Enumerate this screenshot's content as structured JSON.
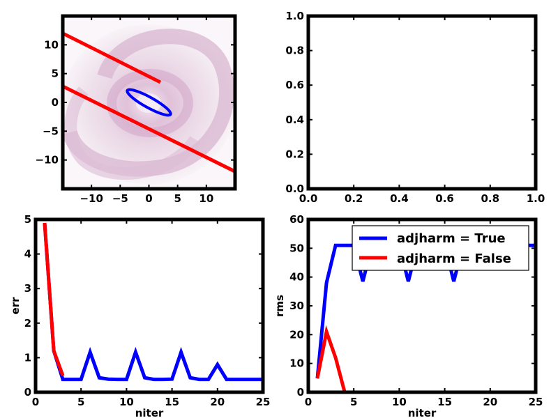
{
  "chart_data": [
    {
      "panel": "top-left",
      "type": "scatter",
      "description_note": "",
      "xlim": [
        -15,
        15
      ],
      "ylim": [
        -15,
        15
      ],
      "xticks": [
        "−10",
        "−5",
        "0",
        "5",
        "10"
      ],
      "xtick_values": [
        -10,
        -5,
        0,
        5,
        10
      ],
      "yticks": [
        "−10",
        "−5",
        "0",
        "5",
        "10"
      ],
      "ytick_values": [
        -10,
        -5,
        0,
        5,
        10
      ],
      "background_color": "#c8a5c0",
      "lines": [
        {
          "color": "#ff0000",
          "x": [
            -15,
            2
          ],
          "y": [
            12,
            3.5
          ]
        },
        {
          "color": "#ff0000",
          "x": [
            -15,
            15
          ],
          "y": [
            2.8,
            -12
          ]
        }
      ],
      "ellipse": {
        "color": "#0000ff",
        "center": [
          0,
          0
        ],
        "semi_major": 4.3,
        "semi_minor": 0.9,
        "angle_deg": -29
      }
    },
    {
      "panel": "top-right",
      "type": "line",
      "xlim": [
        0,
        1
      ],
      "ylim": [
        0,
        1
      ],
      "xticks": [
        "0.0",
        "0.2",
        "0.4",
        "0.6",
        "0.8",
        "1.0"
      ],
      "xtick_values": [
        0,
        0.2,
        0.4,
        0.6,
        0.8,
        1.0
      ],
      "yticks": [
        "0.0",
        "0.2",
        "0.4",
        "0.6",
        "0.8",
        "1.0"
      ],
      "ytick_values": [
        0,
        0.2,
        0.4,
        0.6,
        0.8,
        1.0
      ]
    },
    {
      "panel": "bottom-left",
      "type": "line",
      "xlabel": "niter",
      "ylabel": "err",
      "xlim": [
        0,
        25
      ],
      "ylim": [
        0,
        5
      ],
      "xticks": [
        "0",
        "5",
        "10",
        "15",
        "20",
        "25"
      ],
      "xtick_values": [
        0,
        5,
        10,
        15,
        20,
        25
      ],
      "yticks": [
        "0",
        "1",
        "2",
        "3",
        "4",
        "5"
      ],
      "ytick_values": [
        0,
        1,
        2,
        3,
        4,
        5
      ],
      "series": [
        {
          "color": "#0000ff",
          "x": [
            1,
            2,
            3,
            4,
            5,
            6,
            7,
            8,
            9,
            10,
            11,
            12,
            13,
            14,
            15,
            16,
            17,
            18,
            19,
            20,
            21,
            22,
            23,
            24,
            25
          ],
          "y": [
            4.9,
            1.2,
            0.37,
            0.37,
            0.37,
            1.16,
            0.42,
            0.38,
            0.37,
            0.37,
            1.16,
            0.42,
            0.37,
            0.37,
            0.38,
            1.16,
            0.42,
            0.37,
            0.37,
            0.8,
            0.37,
            0.37,
            0.37,
            0.37,
            0.37
          ]
        },
        {
          "color": "#ff0000",
          "x": [
            1,
            2,
            3
          ],
          "y": [
            4.9,
            1.2,
            0.48
          ]
        }
      ]
    },
    {
      "panel": "bottom-right",
      "type": "line",
      "xlabel": "niter",
      "ylabel": "rms",
      "xlim": [
        0,
        25
      ],
      "ylim": [
        0,
        60
      ],
      "xticks": [
        "0",
        "5",
        "10",
        "15",
        "20",
        "25"
      ],
      "xtick_values": [
        0,
        5,
        10,
        15,
        20,
        25
      ],
      "yticks": [
        "0",
        "10",
        "20",
        "30",
        "40",
        "50",
        "60"
      ],
      "ytick_values": [
        0,
        10,
        20,
        30,
        40,
        50,
        60
      ],
      "legend_position": "top-right",
      "series": [
        {
          "name": "adjharm = True",
          "color": "#0000ff",
          "x": [
            1,
            2,
            3,
            4,
            5,
            6,
            7,
            8,
            9,
            10,
            11,
            12,
            13,
            14,
            15,
            16,
            17,
            18,
            19,
            20,
            21,
            22,
            23,
            24,
            25
          ],
          "y": [
            4.8,
            38,
            51,
            51,
            51,
            38.5,
            51,
            51,
            51,
            51,
            38.5,
            51,
            51,
            51,
            51,
            38.5,
            51,
            51,
            51,
            51,
            51,
            51,
            51,
            51,
            51
          ]
        },
        {
          "name": "adjharm = False",
          "color": "#ff0000",
          "x": [
            1,
            2,
            3,
            4
          ],
          "y": [
            4.8,
            21,
            12,
            0
          ]
        }
      ]
    }
  ]
}
